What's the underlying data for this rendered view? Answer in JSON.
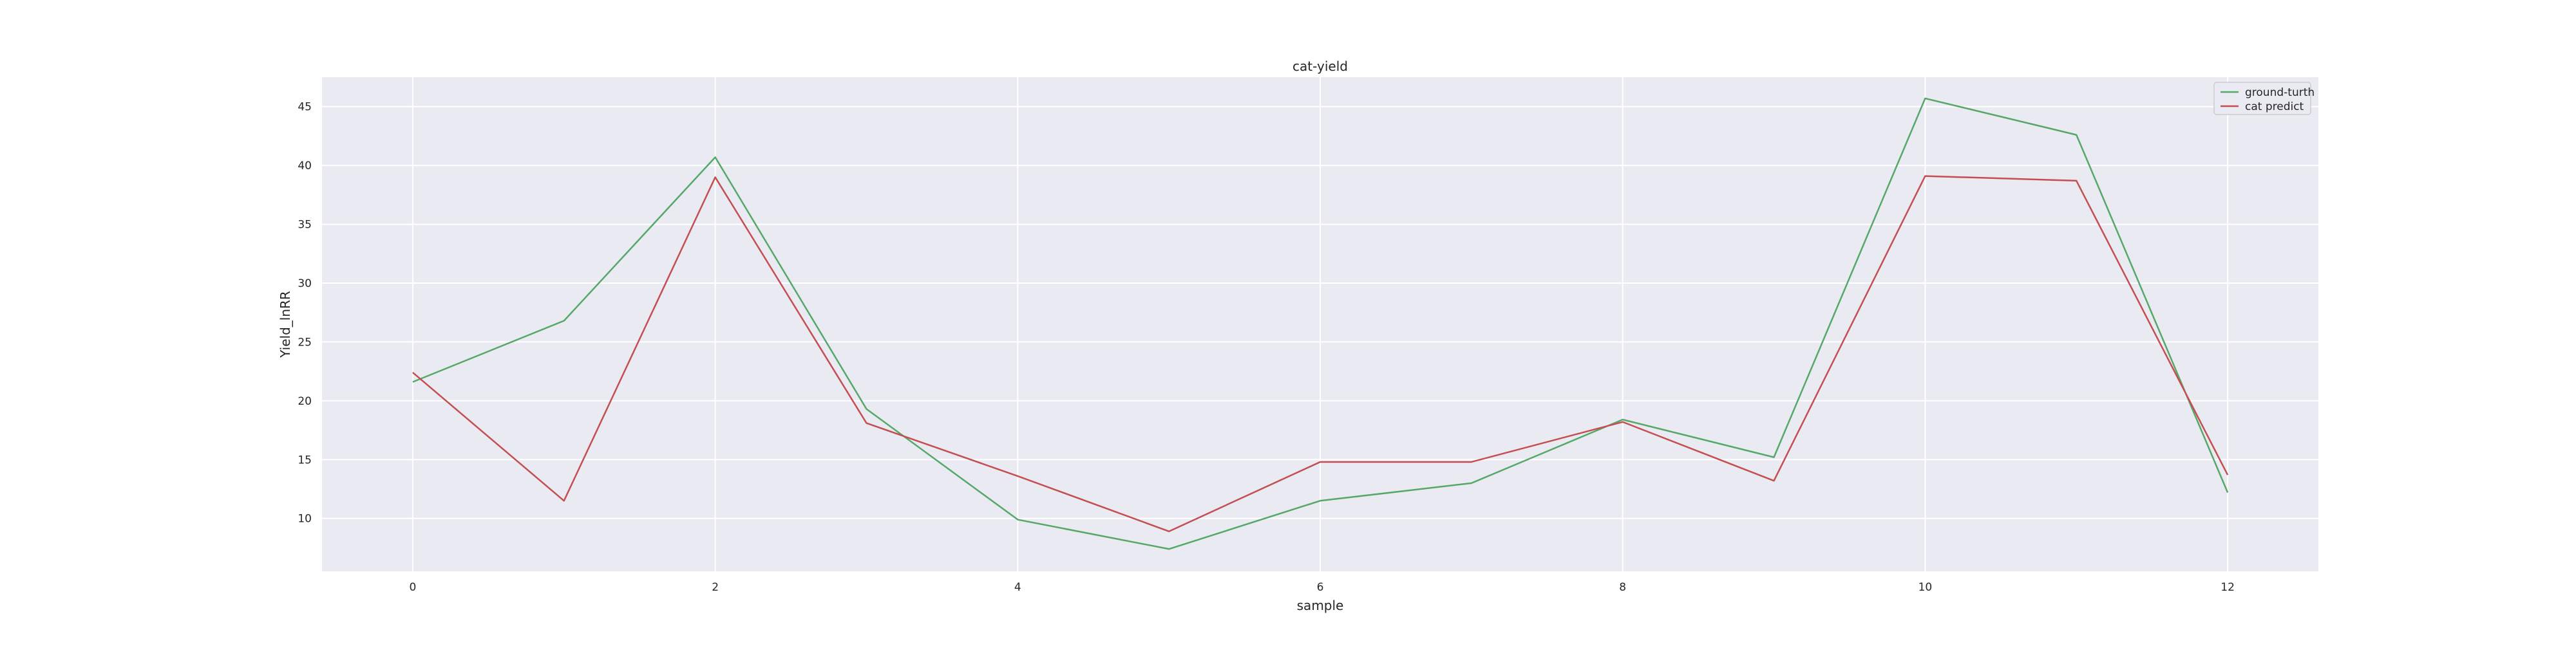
{
  "chart_data": {
    "type": "line",
    "title": "cat-yield",
    "xlabel": "sample",
    "ylabel": "Yield_lnRR",
    "x": [
      0,
      1,
      2,
      3,
      4,
      5,
      6,
      7,
      8,
      9,
      10,
      11,
      12
    ],
    "xlim": [
      -0.6,
      12.6
    ],
    "ylim": [
      5.5,
      47.5
    ],
    "xticks": [
      0,
      2,
      4,
      6,
      8,
      10,
      12
    ],
    "yticks": [
      10,
      15,
      20,
      25,
      30,
      35,
      40,
      45
    ],
    "grid": true,
    "background_color": "#eaeaf2",
    "legend_position": "top-right",
    "series": [
      {
        "name": "ground-turth",
        "color": "#55a868",
        "values": [
          21.6,
          26.8,
          40.7,
          19.3,
          9.9,
          7.4,
          11.5,
          13.0,
          18.4,
          15.2,
          45.7,
          42.6,
          12.2
        ]
      },
      {
        "name": "cat predict",
        "color": "#c44e52",
        "values": [
          22.4,
          11.5,
          39.0,
          18.1,
          13.6,
          8.9,
          14.8,
          14.8,
          18.2,
          13.2,
          39.1,
          38.7,
          13.7
        ]
      }
    ]
  }
}
